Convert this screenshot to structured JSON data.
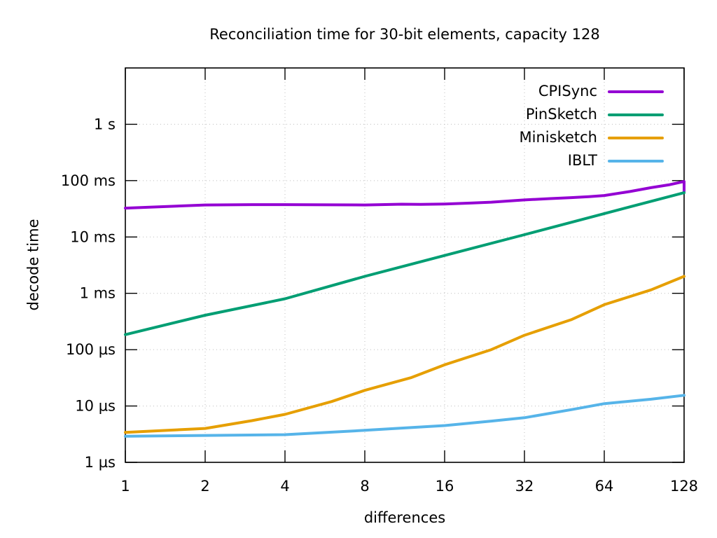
{
  "chart_data": {
    "type": "line",
    "title": "Reconciliation time for 30-bit elements, capacity 128",
    "xlabel": "differences",
    "ylabel": "decode time",
    "x_scale": "log2",
    "y_scale": "log10",
    "xlim": [
      1,
      128
    ],
    "ylim_us": [
      1,
      10000000
    ],
    "y_unit": "µs",
    "grid": true,
    "legend_position": "inside top right",
    "x_ticks": [
      1,
      2,
      4,
      8,
      16,
      32,
      64,
      128
    ],
    "y_ticks": [
      {
        "value": 1,
        "label": "1 µs"
      },
      {
        "value": 10,
        "label": "10 µs"
      },
      {
        "value": 100,
        "label": "100 µs"
      },
      {
        "value": 1000,
        "label": "1 ms"
      },
      {
        "value": 10000,
        "label": "10 ms"
      },
      {
        "value": 100000,
        "label": "100 ms"
      },
      {
        "value": 1000000,
        "label": "1 s"
      }
    ],
    "point_units": [
      "differences",
      "microseconds"
    ],
    "series": [
      {
        "name": "CPISync",
        "color": "#9400d3",
        "points": [
          [
            1,
            32500
          ],
          [
            1.5,
            35000
          ],
          [
            2,
            37000
          ],
          [
            3,
            37500
          ],
          [
            4,
            37500
          ],
          [
            6,
            37200
          ],
          [
            8,
            37000
          ],
          [
            11,
            38200
          ],
          [
            13,
            37800
          ],
          [
            16,
            38500
          ],
          [
            20,
            40000
          ],
          [
            24,
            41500
          ],
          [
            28,
            43500
          ],
          [
            32,
            45500
          ],
          [
            40,
            48000
          ],
          [
            48,
            50000
          ],
          [
            56,
            52000
          ],
          [
            64,
            54500
          ],
          [
            80,
            64000
          ],
          [
            96,
            75000
          ],
          [
            112,
            84000
          ],
          [
            122,
            92000
          ],
          [
            128,
            96500
          ],
          [
            128,
            64000
          ]
        ]
      },
      {
        "name": "PinSketch",
        "color": "#009e73",
        "points": [
          [
            1,
            185
          ],
          [
            2,
            408
          ],
          [
            4,
            800
          ],
          [
            8,
            2000
          ],
          [
            16,
            4700
          ],
          [
            32,
            11000
          ],
          [
            64,
            26000
          ],
          [
            128,
            61000
          ]
        ]
      },
      {
        "name": "Minisketch",
        "color": "#e69f00",
        "points": [
          [
            1,
            3.4
          ],
          [
            2,
            4.0
          ],
          [
            3,
            5.5
          ],
          [
            4,
            7.1
          ],
          [
            6,
            12
          ],
          [
            8,
            19
          ],
          [
            12,
            32
          ],
          [
            16,
            54
          ],
          [
            24,
            100
          ],
          [
            32,
            180
          ],
          [
            48,
            340
          ],
          [
            64,
            630
          ],
          [
            96,
            1150
          ],
          [
            128,
            2000
          ]
        ]
      },
      {
        "name": "IBLT",
        "color": "#56b4e9",
        "points": [
          [
            1,
            2.9
          ],
          [
            2,
            3.0
          ],
          [
            4,
            3.1
          ],
          [
            8,
            3.7
          ],
          [
            16,
            4.5
          ],
          [
            24,
            5.4
          ],
          [
            32,
            6.2
          ],
          [
            48,
            8.6
          ],
          [
            64,
            11
          ],
          [
            96,
            13.2
          ],
          [
            128,
            15.5
          ]
        ]
      }
    ]
  }
}
